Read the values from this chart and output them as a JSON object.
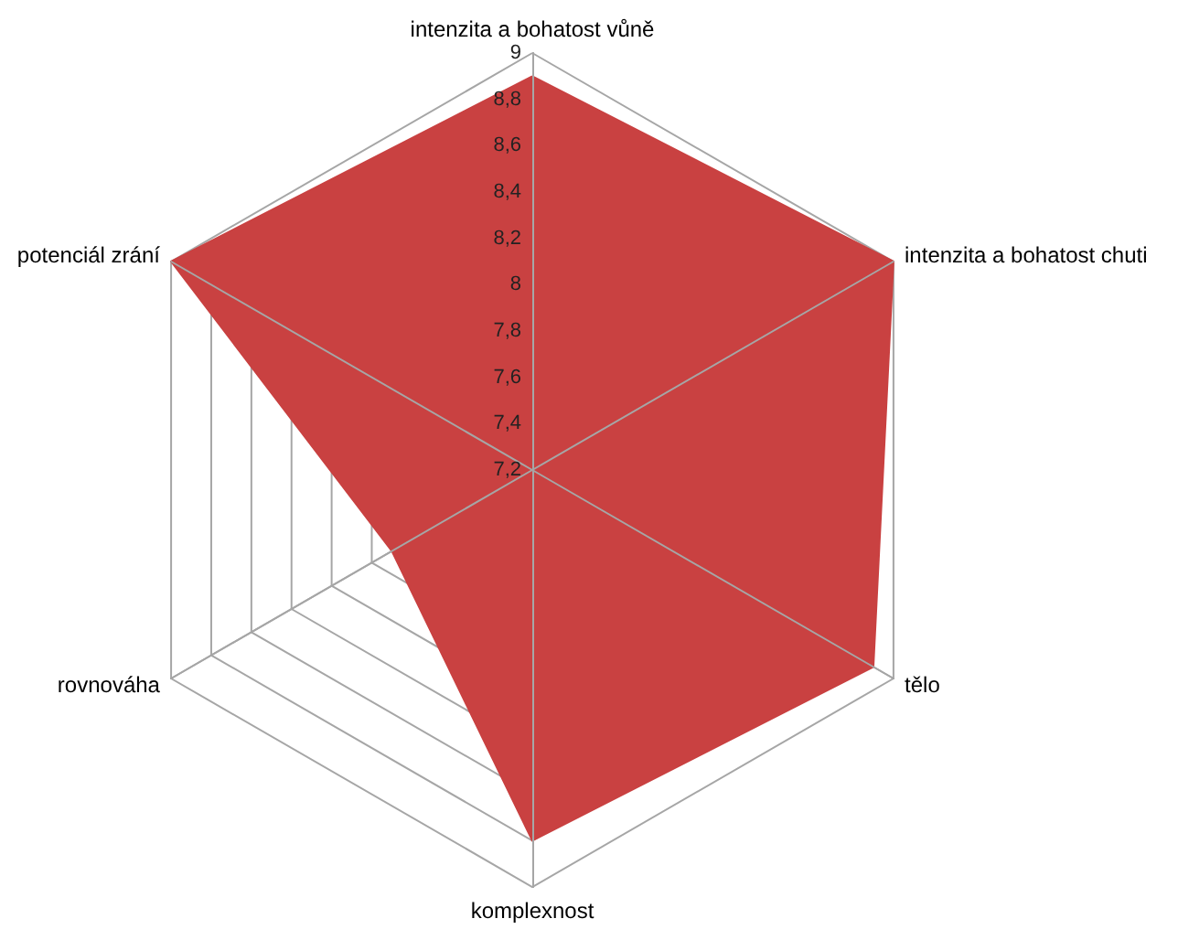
{
  "chart_data": {
    "type": "radar",
    "categories": [
      "intenzita a bohatost vůně",
      "intenzita a bohatost chuti",
      "tělo",
      "komplexnost",
      "rovnováha",
      "potenciál zrání"
    ],
    "series": [
      {
        "color": "#c94141",
        "values": [
          8.9,
          9,
          8.9,
          8.8,
          7.9,
          9
        ]
      }
    ],
    "ylim": [
      7.2,
      9
    ],
    "yticks": [
      {
        "value": 7.2,
        "label": "7,2"
      },
      {
        "value": 7.4,
        "label": "7,4"
      },
      {
        "value": 7.6,
        "label": "7,6"
      },
      {
        "value": 7.8,
        "label": "7,8"
      },
      8,
      {
        "value": 8.2,
        "label": "8,2"
      },
      {
        "value": 8.4,
        "label": "8,4"
      },
      {
        "value": 8.6,
        "label": "8,6"
      },
      {
        "value": 8.8,
        "label": "8,8"
      },
      9
    ],
    "grid": true,
    "marker": "none"
  }
}
